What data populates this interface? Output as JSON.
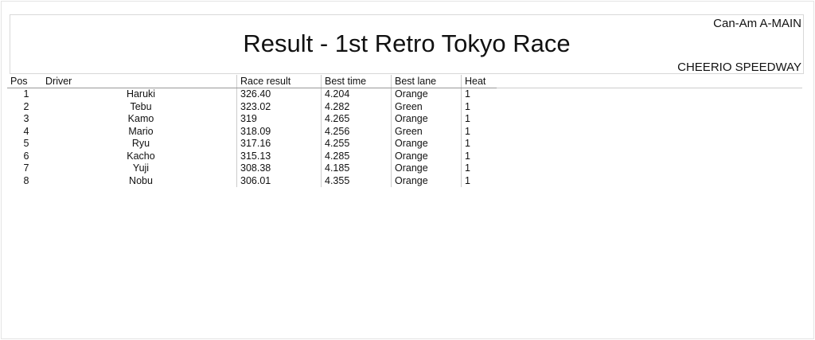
{
  "header": {
    "title": "Result - 1st Retro Tokyo Race",
    "category": "Can-Am A-MAIN",
    "venue": "CHEERIO SPEEDWAY"
  },
  "table": {
    "columns": [
      "Pos",
      "Driver",
      "Race result",
      "Best time",
      "Best lane",
      "Heat"
    ],
    "rows": [
      [
        "1",
        "Haruki",
        "326.40",
        "4.204",
        "Orange",
        "1"
      ],
      [
        "2",
        "Tebu",
        "323.02",
        "4.282",
        "Green",
        "1"
      ],
      [
        "3",
        "Kamo",
        "319",
        "4.265",
        "Orange",
        "1"
      ],
      [
        "4",
        "Mario",
        "318.09",
        "4.256",
        "Green",
        "1"
      ],
      [
        "5",
        "Ryu",
        "317.16",
        "4.255",
        "Orange",
        "1"
      ],
      [
        "6",
        "Kacho",
        "315.13",
        "4.285",
        "Orange",
        "1"
      ],
      [
        "7",
        "Yuji",
        "308.38",
        "4.185",
        "Orange",
        "1"
      ],
      [
        "8",
        "Nobu",
        "306.01",
        "4.355",
        "Orange",
        "1"
      ]
    ]
  }
}
